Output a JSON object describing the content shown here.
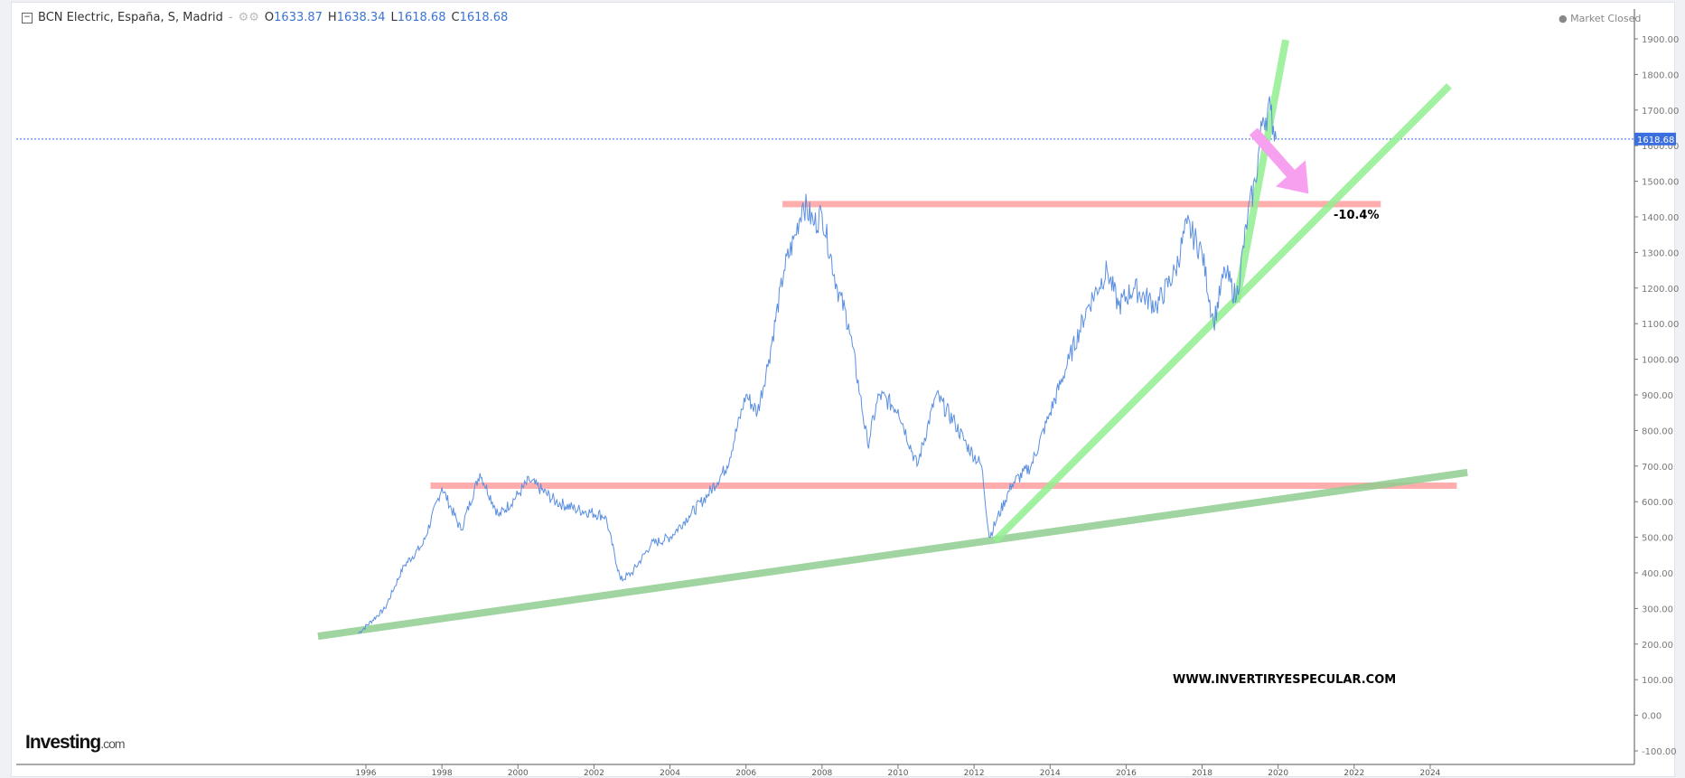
{
  "header": {
    "title": "BCN Electric, España, S, Madrid",
    "open_label": "O",
    "open": "1633.87",
    "high_label": "H",
    "high": "1638.34",
    "low_label": "L",
    "low": "1618.68",
    "close_label": "C",
    "close": "1618.68"
  },
  "status": "Market Closed",
  "logo": "Investing.com",
  "chart_data": {
    "type": "line",
    "ylim": [
      -100,
      1900
    ],
    "xlim": [
      1994.3,
      2027.6
    ],
    "yticks": [
      "1900.00",
      "1800.00",
      "1700.00",
      "1600.00",
      "1500.00",
      "1400.00",
      "1300.00",
      "1200.00",
      "1100.00",
      "1000.00",
      "900.00",
      "800.00",
      "700.00",
      "600.00",
      "500.00",
      "400.00",
      "300.00",
      "200.00",
      "100.00",
      "0.00",
      "-100.00"
    ],
    "xticks": [
      "1996",
      "1998",
      "2000",
      "2002",
      "2004",
      "2006",
      "2008",
      "2010",
      "2012",
      "2014",
      "2016",
      "2018",
      "2020",
      "2022",
      "2024"
    ],
    "last_price": "1618.68",
    "series": [
      {
        "color": "#5b8fe0",
        "points": [
          [
            1995.8,
            230
          ],
          [
            1996.5,
            300
          ],
          [
            1997,
            420
          ],
          [
            1997.5,
            480
          ],
          [
            1998,
            640
          ],
          [
            1998.5,
            520
          ],
          [
            1999,
            680
          ],
          [
            1999.5,
            560
          ],
          [
            2000,
            620
          ],
          [
            2000.3,
            660
          ],
          [
            2001,
            600
          ],
          [
            2001.5,
            580
          ],
          [
            2002.3,
            560
          ],
          [
            2002.7,
            380
          ],
          [
            2003,
            400
          ],
          [
            2003.5,
            480
          ],
          [
            2004,
            500
          ],
          [
            2004.5,
            560
          ],
          [
            2005,
            620
          ],
          [
            2005.5,
            700
          ],
          [
            2006,
            900
          ],
          [
            2006.3,
            850
          ],
          [
            2006.6,
            1000
          ],
          [
            2007,
            1250
          ],
          [
            2007.3,
            1350
          ],
          [
            2007.5,
            1440
          ],
          [
            2007.8,
            1380
          ],
          [
            2008,
            1410
          ],
          [
            2008.4,
            1200
          ],
          [
            2008.7,
            1100
          ],
          [
            2009,
            900
          ],
          [
            2009.2,
            760
          ],
          [
            2009.5,
            900
          ],
          [
            2010,
            860
          ],
          [
            2010.5,
            700
          ],
          [
            2011,
            900
          ],
          [
            2011.5,
            820
          ],
          [
            2011.8,
            760
          ],
          [
            2012.2,
            700
          ],
          [
            2012.4,
            500
          ],
          [
            2012.6,
            550
          ],
          [
            2013,
            650
          ],
          [
            2013.5,
            700
          ],
          [
            2014,
            850
          ],
          [
            2014.5,
            1000
          ],
          [
            2015,
            1150
          ],
          [
            2015.5,
            1250
          ],
          [
            2015.8,
            1150
          ],
          [
            2016.2,
            1200
          ],
          [
            2016.8,
            1150
          ],
          [
            2017.3,
            1250
          ],
          [
            2017.6,
            1380
          ],
          [
            2018,
            1300
          ],
          [
            2018.3,
            1100
          ],
          [
            2018.6,
            1250
          ],
          [
            2018.9,
            1170
          ],
          [
            2019.2,
            1400
          ],
          [
            2019.4,
            1500
          ],
          [
            2019.6,
            1680
          ],
          [
            2019.8,
            1700
          ],
          [
            2019.95,
            1618
          ]
        ]
      }
    ],
    "annotations": {
      "trendlines": [
        {
          "from": [
            1994.74,
            222
          ],
          "to": [
            2024.98,
            682
          ],
          "color": "#8fcc8f"
        },
        {
          "from": [
            2012.55,
            490
          ],
          "to": [
            2024.5,
            1768
          ],
          "color": "#90ee90"
        },
        {
          "from": [
            2018.9,
            1160
          ],
          "to": [
            2020.2,
            1897
          ],
          "color": "#90ee90"
        }
      ],
      "levels": [
        {
          "from": [
            2006.96,
            1436
          ],
          "to": [
            2022.7,
            1436
          ],
          "color": "#ff9f9f"
        },
        {
          "from": [
            1997.7,
            645
          ],
          "to": [
            2024.7,
            645
          ],
          "color": "#ff9f9f"
        }
      ],
      "arrow": {
        "from": [
          2019.35,
          1640
        ],
        "to": [
          2020.8,
          1465
        ],
        "color": "#f7a0f0"
      },
      "label": "-10.4%",
      "watermark": "WWW.INVERTIRYESPECULAR.COM"
    }
  }
}
